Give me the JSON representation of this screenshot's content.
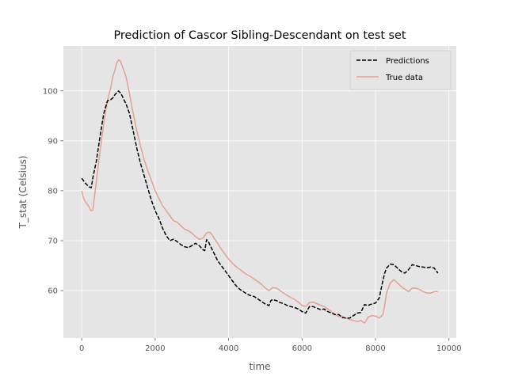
{
  "chart_data": {
    "type": "line",
    "title": "Prediction of Cascor Sibling-Descendant on test set",
    "xlabel": "time",
    "ylabel": "T_stat (Celsius)",
    "xlim": [
      -500,
      10200
    ],
    "ylim": [
      50.5,
      109
    ],
    "xticks": [
      0,
      2000,
      4000,
      6000,
      8000,
      10000
    ],
    "yticks": [
      60,
      70,
      80,
      90,
      100
    ],
    "xtick_labels": [
      "0",
      "2000",
      "4000",
      "6000",
      "8000",
      "10000"
    ],
    "ytick_labels": [
      "60",
      "70",
      "80",
      "90",
      "100"
    ],
    "grid": true,
    "legend_position": "top-right",
    "series": [
      {
        "name": "Predictions",
        "color": "#000000",
        "style": "dashed",
        "x": [
          0,
          100,
          200,
          260,
          300,
          400,
          500,
          600,
          700,
          800,
          850,
          900,
          950,
          1000,
          1050,
          1100,
          1150,
          1200,
          1300,
          1400,
          1500,
          1600,
          1700,
          1800,
          1900,
          2000,
          2100,
          2200,
          2300,
          2400,
          2500,
          2600,
          2700,
          2800,
          2900,
          3000,
          3100,
          3200,
          3300,
          3350,
          3400,
          3450,
          3500,
          3600,
          3700,
          3800,
          3900,
          4000,
          4100,
          4200,
          4300,
          4400,
          4500,
          4600,
          4700,
          4800,
          4900,
          5000,
          5100,
          5150,
          5200,
          5300,
          5400,
          5500,
          5600,
          5700,
          5800,
          5900,
          6000,
          6100,
          6200,
          6300,
          6400,
          6500,
          6600,
          6700,
          6800,
          6900,
          7000,
          7100,
          7200,
          7300,
          7400,
          7500,
          7600,
          7700,
          7800,
          7850,
          7900,
          8000,
          8100,
          8200,
          8250,
          8300,
          8400,
          8500,
          8600,
          8700,
          8800,
          8900,
          9000,
          9100,
          9200,
          9300,
          9400,
          9500,
          9600,
          9700
        ],
        "y": [
          82.5,
          81.5,
          80.8,
          80.6,
          82.5,
          86,
          91,
          95.5,
          98,
          98.3,
          98.6,
          99.2,
          99.6,
          100,
          99.6,
          99,
          98.2,
          97.5,
          95.5,
          92,
          88.5,
          85.5,
          83,
          80.5,
          78,
          76,
          74.5,
          72.5,
          71,
          70,
          70.3,
          69.8,
          69.2,
          68.8,
          68.6,
          69,
          69.5,
          69,
          68.2,
          68,
          70.2,
          69.8,
          69,
          67.5,
          66,
          65,
          64,
          63,
          62,
          61,
          60.3,
          59.8,
          59.3,
          59,
          58.8,
          58.3,
          57.8,
          57.3,
          57,
          58,
          58.2,
          58,
          57.6,
          57.4,
          57,
          56.8,
          56.6,
          56.3,
          55.8,
          55.5,
          56.8,
          56.8,
          56.5,
          56.2,
          56.3,
          55.8,
          55.5,
          55.2,
          55.2,
          54.6,
          54.5,
          54.5,
          55,
          55.5,
          55.6,
          57.2,
          57,
          57.2,
          57.3,
          57.5,
          58.5,
          62,
          63.5,
          64.5,
          65.3,
          65.2,
          64.5,
          63.8,
          63.5,
          64.2,
          65.2,
          65,
          64.8,
          64.7,
          64.6,
          64.7,
          64.5,
          63.5
        ]
      },
      {
        "name": "True data",
        "color": "#E5A090",
        "style": "solid",
        "x": [
          0,
          50,
          100,
          200,
          250,
          300,
          350,
          400,
          500,
          600,
          700,
          800,
          850,
          900,
          950,
          1000,
          1050,
          1100,
          1150,
          1200,
          1300,
          1400,
          1500,
          1600,
          1700,
          1800,
          1900,
          2000,
          2100,
          2200,
          2300,
          2400,
          2500,
          2600,
          2700,
          2800,
          2900,
          3000,
          3100,
          3200,
          3300,
          3400,
          3450,
          3500,
          3550,
          3600,
          3700,
          3800,
          3900,
          4000,
          4100,
          4200,
          4300,
          4400,
          4500,
          4600,
          4700,
          4800,
          4900,
          5000,
          5100,
          5200,
          5300,
          5400,
          5500,
          5600,
          5700,
          5800,
          5900,
          6000,
          6100,
          6200,
          6300,
          6400,
          6500,
          6600,
          6700,
          6800,
          6900,
          7000,
          7100,
          7200,
          7300,
          7400,
          7500,
          7600,
          7700,
          7750,
          7800,
          7900,
          8000,
          8100,
          8200,
          8250,
          8300,
          8400,
          8500,
          8600,
          8700,
          8800,
          8900,
          9000,
          9100,
          9200,
          9300,
          9400,
          9500,
          9600,
          9700
        ],
        "y": [
          80,
          78.5,
          77.8,
          76.8,
          76,
          76.1,
          79,
          82,
          88,
          93.5,
          98,
          101,
          103,
          104,
          105.5,
          106.2,
          106,
          105,
          104,
          103,
          99.5,
          95.5,
          92,
          89,
          86.2,
          84,
          82,
          80,
          78.5,
          77,
          76,
          75,
          74,
          73.7,
          73,
          72.3,
          72,
          71.5,
          70.8,
          70.3,
          70.5,
          71.5,
          71.7,
          71.6,
          71.2,
          70.5,
          69.5,
          68.3,
          67.3,
          66.3,
          65.5,
          64.8,
          64.3,
          63.7,
          63.2,
          62.8,
          62.3,
          61.8,
          61.2,
          60.5,
          60,
          60.6,
          60.5,
          60,
          59.5,
          59,
          58.6,
          58.2,
          57.7,
          57,
          56.8,
          57.6,
          57.7,
          57.4,
          57.1,
          56.8,
          56.3,
          55.8,
          55.2,
          54.8,
          54.8,
          54.5,
          54.2,
          54,
          53.8,
          54,
          53.5,
          54,
          54.7,
          55,
          54.9,
          54.5,
          55.2,
          57,
          59.5,
          61.5,
          62.2,
          61.5,
          60.8,
          60.3,
          59.8,
          60.5,
          60.5,
          60.2,
          59.8,
          59.5,
          59.5,
          59.8,
          59.8
        ]
      }
    ]
  }
}
